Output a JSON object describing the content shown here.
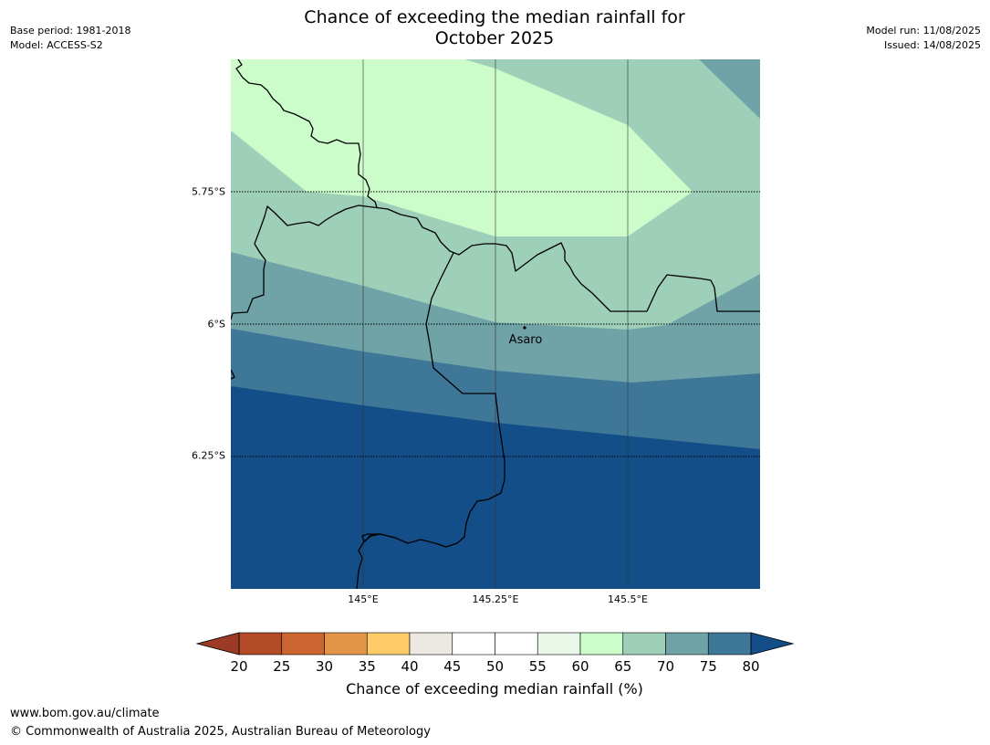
{
  "title_line1": "Chance of exceeding the median rainfall for",
  "title_line2": "October 2025",
  "meta_left": {
    "base_period": "Base period: 1981-2018",
    "model": "Model: ACCESS-S2"
  },
  "meta_right": {
    "model_run": "Model run: 11/08/2025",
    "issued": "Issued: 14/08/2025"
  },
  "map": {
    "latitude_labels": [
      "5.75°S",
      "6°S",
      "6.25°S"
    ],
    "longitude_labels": [
      "145°E",
      "145.25°E",
      "145.5°E"
    ],
    "place_label": "Asaro",
    "colors": {
      "band_60_65": "#ccfcca",
      "band_65_70": "#9ecfb9",
      "band_70_75": "#6fa3a8",
      "band_75_80": "#3f7798",
      "band_over_80": "#144e88"
    }
  },
  "colorbar": {
    "ticks": [
      "20",
      "25",
      "30",
      "35",
      "40",
      "45",
      "50",
      "55",
      "60",
      "65",
      "70",
      "75",
      "80"
    ],
    "under_color": "#9b3b26",
    "over_color": "#144e88",
    "bin_colors": [
      "#b24b26",
      "#cd6531",
      "#e29546",
      "#fdcb67",
      "#ece8e4",
      "#ffffff",
      "#ffffff",
      "#e8f7e7",
      "#ccfcca",
      "#9ecfb9",
      "#6fa3a8",
      "#3f7798"
    ],
    "label": "Chance of exceeding median rainfall (%)"
  },
  "footer": {
    "url": "www.bom.gov.au/climate",
    "copyright": "© Commonwealth of Australia 2025, Australian Bureau of Meteorology"
  }
}
